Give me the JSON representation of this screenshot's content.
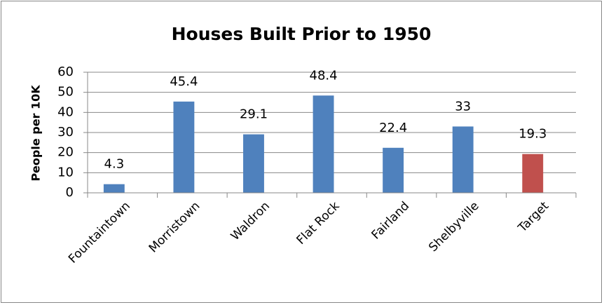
{
  "chart_data": {
    "type": "bar",
    "title": "Houses Built Prior to 1950",
    "y_label": "People per 10K",
    "categories": [
      "Fountaintown",
      "Morristown",
      "Waldron",
      "Flat Rock",
      "Fairland",
      "Shelbyville",
      "Target"
    ],
    "values": [
      4.3,
      45.4,
      29.1,
      48.4,
      22.4,
      33,
      19.3
    ],
    "colors": [
      "#4f81bd",
      "#4f81bd",
      "#4f81bd",
      "#4f81bd",
      "#4f81bd",
      "#4f81bd",
      "#c0504d"
    ],
    "ylim": [
      0,
      60
    ],
    "yticks": [
      0,
      10,
      20,
      30,
      40,
      50,
      60
    ],
    "grid": true
  }
}
